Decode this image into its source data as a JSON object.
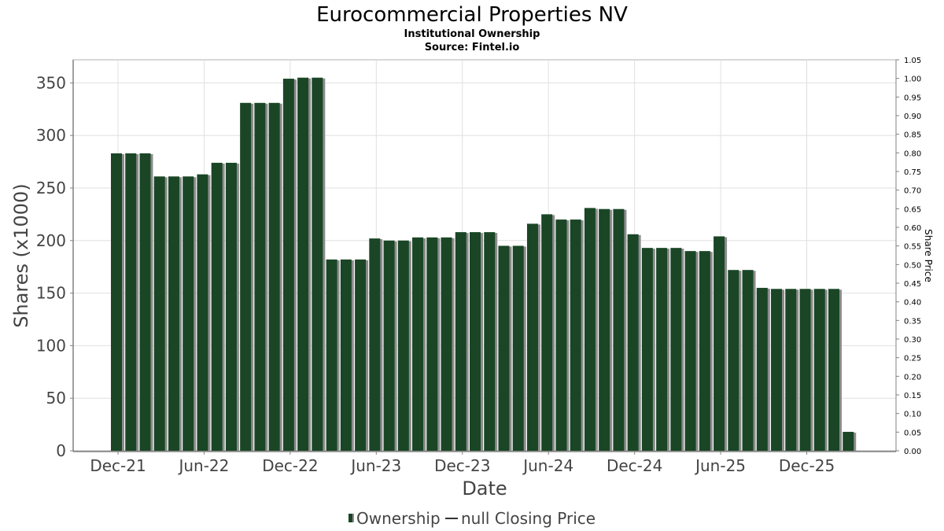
{
  "chart_data": {
    "type": "bar",
    "title": "Eurocommercial Properties NV",
    "subtitle": "Institutional Ownership",
    "source": "Source: Fintel.io",
    "xlabel": "Date",
    "ylabel": "Shares (x1000)",
    "y2label": "Share Price",
    "ylim": [
      0,
      372
    ],
    "y2lim": [
      0,
      1.05
    ],
    "yticks": [
      "0",
      "50",
      "100",
      "150",
      "200",
      "250",
      "300",
      "350"
    ],
    "y2ticks": [
      "0.00",
      "0.05",
      "0.10",
      "0.15",
      "0.20",
      "0.25",
      "0.30",
      "0.35",
      "0.40",
      "0.45",
      "0.50",
      "0.55",
      "0.60",
      "0.65",
      "0.70",
      "0.75",
      "0.80",
      "0.85",
      "0.90",
      "0.95",
      "1.00",
      "1.05"
    ],
    "xticks": [
      "Dec-21",
      "Jun-22",
      "Dec-22",
      "Jun-23",
      "Dec-23",
      "Jun-24",
      "Dec-24",
      "Jun-25",
      "Dec-25"
    ],
    "xtick_index": [
      0.5,
      6.5,
      12.5,
      18.5,
      24.5,
      30.5,
      36.5,
      42.5,
      48.5
    ],
    "grid": true,
    "legend_position": "bottom",
    "series": [
      {
        "name": "Ownership",
        "color": "#1a4626",
        "values": [
          283,
          283,
          283,
          261,
          261,
          261,
          263,
          274,
          274,
          331,
          331,
          331,
          354,
          355,
          355,
          182,
          182,
          182,
          202,
          200,
          200,
          203,
          203,
          203,
          208,
          208,
          208,
          195,
          195,
          216,
          225,
          220,
          220,
          231,
          230,
          230,
          206,
          193,
          193,
          193,
          190,
          190,
          204,
          172,
          172,
          155,
          154,
          154,
          154,
          154,
          154,
          18
        ]
      },
      {
        "name": "null Closing Price",
        "color": "#333333",
        "values": []
      }
    ]
  },
  "colors": {
    "bar": "#1a4626",
    "bar_shadow": "#8c8c8c",
    "grid": "#e0e0e0",
    "axis": "#808080"
  }
}
